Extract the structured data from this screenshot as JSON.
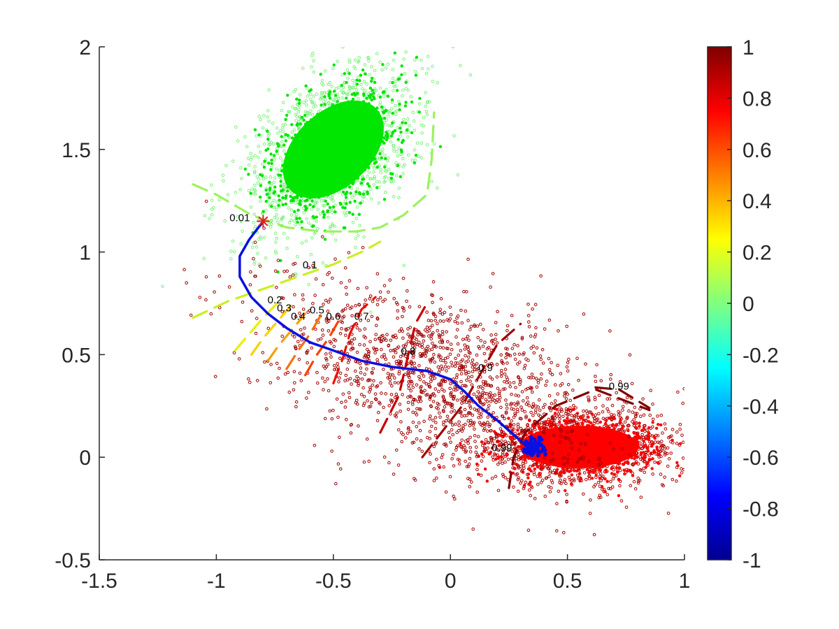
{
  "chart_data": {
    "type": "scatter",
    "title": "",
    "xlabel": "",
    "ylabel": "",
    "xlim": [
      -1.5,
      1
    ],
    "ylim": [
      -0.5,
      2
    ],
    "grid": false,
    "x_ticks": [
      -1.5,
      -1,
      -0.5,
      0,
      0.5,
      1
    ],
    "x_tick_labels": [
      "-1.5",
      "-1",
      "-0.5",
      "0",
      "0.5",
      "1"
    ],
    "y_ticks": [
      -0.5,
      0,
      0.5,
      1,
      1.5,
      2
    ],
    "y_tick_labels": [
      "-0.5",
      "0",
      "0.5",
      "1",
      "1.5",
      "2"
    ],
    "colorbar": {
      "range": [
        -1,
        1
      ],
      "ticks": [
        -1,
        -0.8,
        -0.6,
        -0.4,
        -0.2,
        0,
        0.2,
        0.4,
        0.6,
        0.8,
        1
      ],
      "tick_labels": [
        "-1",
        "-0.8",
        "-0.6",
        "-0.4",
        "-0.2",
        "0",
        "0.2",
        "0.4",
        "0.6",
        "0.8",
        "1"
      ],
      "colormap": "jet",
      "colors": [
        "#00008f",
        "#0000ff",
        "#0080ff",
        "#00ffff",
        "#80ff80",
        "#ffff00",
        "#ff8000",
        "#ff0000",
        "#800000"
      ]
    },
    "clusters": [
      {
        "center": [
          -0.5,
          1.5
        ],
        "spread": [
          0.22,
          0.16
        ],
        "angle_deg": 43,
        "core_color": "#00e600",
        "halo_color": "#80f080"
      },
      {
        "center": [
          0.55,
          0.05
        ],
        "spread": [
          0.22,
          0.09
        ],
        "angle_deg": 0,
        "core_color": "#ff0000",
        "halo_color": "#b00000"
      },
      {
        "center": [
          -0.05,
          0.4
        ],
        "spread": [
          0.35,
          0.18
        ],
        "angle_deg": -20,
        "core_color": "#a00000",
        "halo_color": "#a00000"
      }
    ],
    "path": {
      "color": "#0a10e0",
      "start_marker": {
        "x": -0.8,
        "y": 1.15,
        "color": "#e02020"
      },
      "x": [
        -0.8,
        -0.86,
        -0.9,
        -0.9,
        -0.85,
        -0.78,
        -0.7,
        -0.6,
        -0.5,
        -0.38,
        -0.25,
        -0.1,
        0.0,
        0.06,
        0.12,
        0.2,
        0.28,
        0.33
      ],
      "y": [
        1.15,
        1.06,
        0.98,
        0.88,
        0.78,
        0.7,
        0.63,
        0.56,
        0.52,
        0.47,
        0.44,
        0.42,
        0.38,
        0.32,
        0.25,
        0.18,
        0.1,
        0.05
      ]
    },
    "contours": [
      {
        "level": "0.01",
        "color": "#9cf25c",
        "points": [
          [
            -1.1,
            1.33
          ],
          [
            -1.0,
            1.28
          ],
          [
            -0.85,
            1.18
          ],
          [
            -0.7,
            1.12
          ],
          [
            -0.55,
            1.1
          ],
          [
            -0.4,
            1.1
          ],
          [
            -0.3,
            1.12
          ],
          [
            -0.2,
            1.18
          ],
          [
            -0.1,
            1.28
          ],
          [
            -0.08,
            1.45
          ],
          [
            -0.07,
            1.68
          ]
        ],
        "label_xy": [
          -0.9,
          1.15
        ]
      },
      {
        "level": "0.1",
        "color": "#c8f020",
        "points": [
          [
            -1.1,
            0.68
          ],
          [
            -0.95,
            0.76
          ],
          [
            -0.8,
            0.82
          ],
          [
            -0.65,
            0.88
          ],
          [
            -0.5,
            0.94
          ],
          [
            -0.38,
            1.0
          ],
          [
            -0.3,
            1.05
          ]
        ],
        "label_xy": [
          -0.6,
          0.92
        ]
      },
      {
        "level": "0.2",
        "color": "#e8f000",
        "points": [
          [
            -0.92,
            0.52
          ],
          [
            -0.86,
            0.6
          ],
          [
            -0.8,
            0.68
          ],
          [
            -0.74,
            0.75
          ]
        ],
        "label_xy": [
          -0.75,
          0.75
        ]
      },
      {
        "level": "0.3",
        "color": "#f8d000",
        "points": [
          [
            -0.85,
            0.5
          ],
          [
            -0.8,
            0.58
          ],
          [
            -0.74,
            0.66
          ],
          [
            -0.68,
            0.74
          ]
        ],
        "label_xy": [
          -0.71,
          0.71
        ]
      },
      {
        "level": "0.4",
        "color": "#f8a000",
        "points": [
          [
            -0.78,
            0.47
          ],
          [
            -0.73,
            0.55
          ],
          [
            -0.67,
            0.63
          ],
          [
            -0.62,
            0.7
          ]
        ],
        "label_xy": [
          -0.65,
          0.67
        ]
      },
      {
        "level": "0.5",
        "color": "#f87000",
        "points": [
          [
            -0.7,
            0.43
          ],
          [
            -0.65,
            0.52
          ],
          [
            -0.6,
            0.6
          ],
          [
            -0.55,
            0.7
          ]
        ],
        "label_xy": [
          -0.57,
          0.7
        ]
      },
      {
        "level": "0.6",
        "color": "#ff4000",
        "points": [
          [
            -0.62,
            0.4
          ],
          [
            -0.57,
            0.5
          ],
          [
            -0.52,
            0.58
          ],
          [
            -0.47,
            0.68
          ]
        ],
        "label_xy": [
          -0.5,
          0.67
        ]
      },
      {
        "level": "0.7",
        "color": "#ee1000",
        "points": [
          [
            -0.5,
            0.36
          ],
          [
            -0.46,
            0.48
          ],
          [
            -0.43,
            0.6
          ],
          [
            -0.38,
            0.72
          ],
          [
            -0.32,
            0.78
          ]
        ],
        "label_xy": [
          -0.38,
          0.67
        ]
      },
      {
        "level": "0.8",
        "color": "#c80000",
        "points": [
          [
            -0.3,
            0.12
          ],
          [
            -0.22,
            0.3
          ],
          [
            -0.18,
            0.5
          ],
          [
            -0.15,
            0.65
          ],
          [
            -0.1,
            0.75
          ]
        ],
        "label_xy": [
          -0.18,
          0.5
        ]
      },
      {
        "level": "0.9",
        "color": "#a00000",
        "points": [
          [
            -0.12,
            0.0
          ],
          [
            0.05,
            0.25
          ],
          [
            0.1,
            0.35
          ],
          [
            0.15,
            0.45
          ],
          [
            0.2,
            0.55
          ],
          [
            0.3,
            0.65
          ]
        ],
        "label_xy": [
          0.15,
          0.42
        ]
      },
      {
        "level": "0.99",
        "color": "#800000",
        "points": [
          [
            0.25,
            -0.15
          ],
          [
            0.27,
            0.0
          ],
          [
            0.32,
            0.12
          ],
          [
            0.45,
            0.25
          ],
          [
            0.62,
            0.33
          ],
          [
            0.85,
            0.23
          ]
        ],
        "label_xy": [
          0.22,
          0.03
        ]
      },
      {
        "level": "0.99",
        "color": "#800000",
        "points": [
          [
            0.62,
            0.34
          ],
          [
            0.72,
            0.33
          ],
          [
            0.85,
            0.24
          ]
        ],
        "label_xy": [
          0.72,
          0.33
        ]
      }
    ]
  }
}
